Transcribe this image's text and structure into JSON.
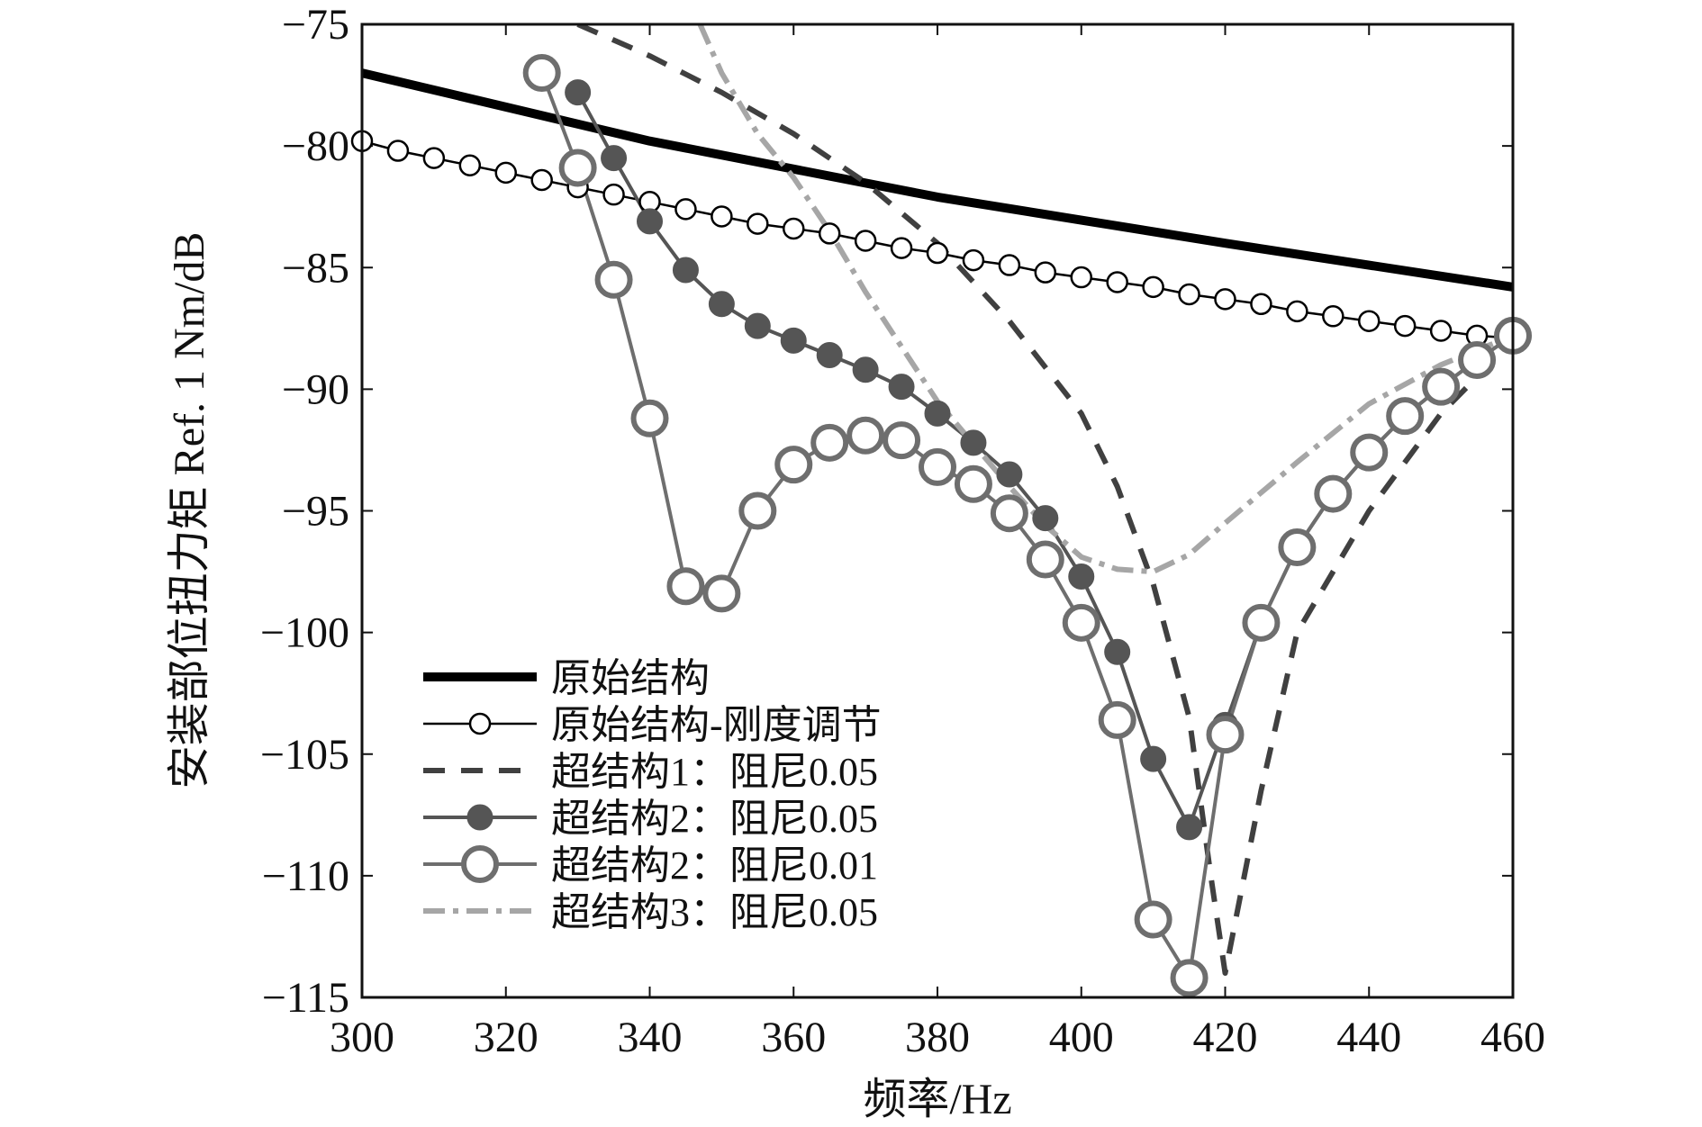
{
  "chart_data": {
    "type": "line",
    "xlabel": "频率/Hz",
    "ylabel": "安装部位扭力矩 Ref. 1 Nm/dB",
    "xlim": [
      300,
      460
    ],
    "ylim": [
      -115,
      -75
    ],
    "xticks": [
      300,
      320,
      340,
      360,
      380,
      400,
      420,
      440,
      460
    ],
    "yticks": [
      -75,
      -80,
      -85,
      -90,
      -95,
      -100,
      -105,
      -110,
      -115
    ],
    "legend_position": "bottom-left",
    "series": [
      {
        "name": "原始结构",
        "color": "#000000",
        "style": "solid",
        "width": 10,
        "marker": "none",
        "x": [
          300,
          340,
          380,
          420,
          460
        ],
        "y": [
          -77.0,
          -79.8,
          -82.1,
          -84.0,
          -85.8
        ]
      },
      {
        "name": "原始结构-刚度调节",
        "color": "#000000",
        "style": "solid",
        "width": 2.5,
        "marker": "open-small",
        "x": [
          300,
          305,
          310,
          315,
          320,
          325,
          330,
          335,
          340,
          345,
          350,
          355,
          360,
          365,
          370,
          375,
          380,
          385,
          390,
          395,
          400,
          405,
          410,
          415,
          420,
          425,
          430,
          435,
          440,
          445,
          450,
          455,
          460
        ],
        "y": [
          -79.8,
          -80.2,
          -80.5,
          -80.8,
          -81.1,
          -81.4,
          -81.7,
          -82.0,
          -82.3,
          -82.6,
          -82.9,
          -83.2,
          -83.4,
          -83.6,
          -83.9,
          -84.2,
          -84.4,
          -84.7,
          -84.9,
          -85.2,
          -85.4,
          -85.6,
          -85.8,
          -86.1,
          -86.3,
          -86.5,
          -86.8,
          -87.0,
          -87.2,
          -87.4,
          -87.6,
          -87.8,
          -87.9
        ]
      },
      {
        "name": "超结构1：阻尼0.05",
        "color": "#404040",
        "style": "dashed",
        "width": 6,
        "marker": "none",
        "x": [
          330,
          340,
          350,
          360,
          370,
          380,
          390,
          400,
          405,
          410,
          415,
          418,
          420,
          425,
          430,
          440,
          450,
          460
        ],
        "y": [
          -75.0,
          -76.3,
          -77.8,
          -79.5,
          -81.5,
          -84.0,
          -87.2,
          -91.0,
          -94.0,
          -98.0,
          -103.5,
          -110.0,
          -114.0,
          -106.5,
          -100.0,
          -95.0,
          -91.0,
          -88.0
        ]
      },
      {
        "name": "超结构2：阻尼0.05",
        "color": "#555555",
        "style": "solid",
        "width": 4,
        "marker": "filled",
        "x": [
          330,
          335,
          340,
          345,
          350,
          355,
          360,
          365,
          370,
          375,
          380,
          385,
          390,
          395,
          400,
          405,
          410,
          415,
          420,
          425,
          430,
          435,
          440,
          445,
          450,
          455,
          460
        ],
        "y": [
          -77.8,
          -80.5,
          -83.1,
          -85.1,
          -86.5,
          -87.4,
          -88.0,
          -88.6,
          -89.2,
          -89.9,
          -91.0,
          -92.2,
          -93.5,
          -95.3,
          -97.7,
          -100.8,
          -105.2,
          -108.0,
          -103.8,
          -99.6,
          -96.5,
          -94.3,
          -92.6,
          -91.1,
          -89.9,
          -88.8,
          -87.8
        ]
      },
      {
        "name": "超结构2：阻尼0.01",
        "color": "#6e6e6e",
        "style": "solid",
        "width": 4,
        "marker": "open-large",
        "x": [
          325,
          330,
          335,
          340,
          345,
          350,
          355,
          360,
          365,
          370,
          375,
          380,
          385,
          390,
          395,
          400,
          405,
          410,
          415,
          420,
          425,
          430,
          435,
          440,
          445,
          450,
          455,
          460
        ],
        "y": [
          -77.0,
          -80.9,
          -85.5,
          -91.2,
          -98.1,
          -98.4,
          -95.0,
          -93.1,
          -92.2,
          -91.9,
          -92.1,
          -93.2,
          -93.9,
          -95.1,
          -97.0,
          -99.6,
          -103.6,
          -111.8,
          -114.2,
          -104.2,
          -99.6,
          -96.5,
          -94.3,
          -92.6,
          -91.1,
          -89.9,
          -88.8,
          -87.8
        ]
      },
      {
        "name": "超结构3：阻尼0.05",
        "color": "#a6a6a6",
        "style": "dashdot",
        "width": 6,
        "marker": "none",
        "x": [
          347,
          350,
          355,
          360,
          365,
          370,
          380,
          390,
          395,
          400,
          405,
          410,
          415,
          420,
          430,
          440,
          450,
          460
        ],
        "y": [
          -75.0,
          -77.0,
          -79.5,
          -81.3,
          -83.5,
          -86.0,
          -90.5,
          -94.0,
          -95.6,
          -96.9,
          -97.4,
          -97.5,
          -96.8,
          -95.5,
          -93.0,
          -90.6,
          -89.0,
          -87.8
        ]
      }
    ]
  }
}
